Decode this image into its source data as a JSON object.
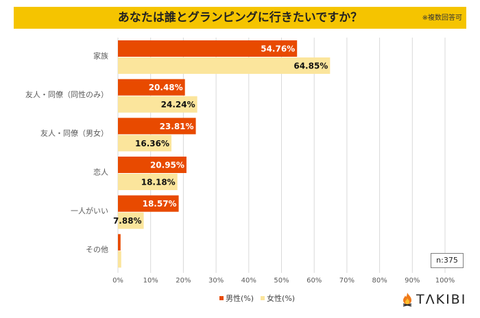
{
  "header": {
    "title": "あなたは誰とグランピングに行きたいですか？",
    "note": "※複数回答可"
  },
  "sample_size": "n:375",
  "logo": {
    "text": "TΛKIBI",
    "icon": "campfire-icon"
  },
  "colors": {
    "header": "#F5C400",
    "male": "#E84A00",
    "female": "#FBE59C",
    "grid": "#D9D9D9"
  },
  "chart_data": {
    "type": "bar",
    "orientation": "horizontal",
    "title": "あなたは誰とグランピングに行きたいですか？",
    "categories": [
      "家族",
      "友人・同僚（同性のみ）",
      "友人・同僚（男女）",
      "恋人",
      "一人がいい",
      "その他"
    ],
    "series": [
      {
        "name": "男性(%)",
        "values": [
          54.76,
          20.48,
          23.81,
          20.95,
          18.57,
          0.8
        ],
        "labels": [
          "54.76%",
          "20.48%",
          "23.81%",
          "20.95%",
          "18.57%",
          ""
        ]
      },
      {
        "name": "女性(%)",
        "values": [
          64.85,
          24.24,
          16.36,
          18.18,
          7.88,
          1.0
        ],
        "labels": [
          "64.85%",
          "24.24%",
          "16.36%",
          "18.18%",
          "7.88%",
          ""
        ]
      }
    ],
    "xlim": [
      0,
      100
    ],
    "x_ticks": [
      "0%",
      "10%",
      "20%",
      "30%",
      "40%",
      "50%",
      "60%",
      "70%",
      "80%",
      "90%",
      "100%"
    ],
    "grid": true,
    "legend_position": "bottom",
    "xlabel": "",
    "ylabel": ""
  }
}
